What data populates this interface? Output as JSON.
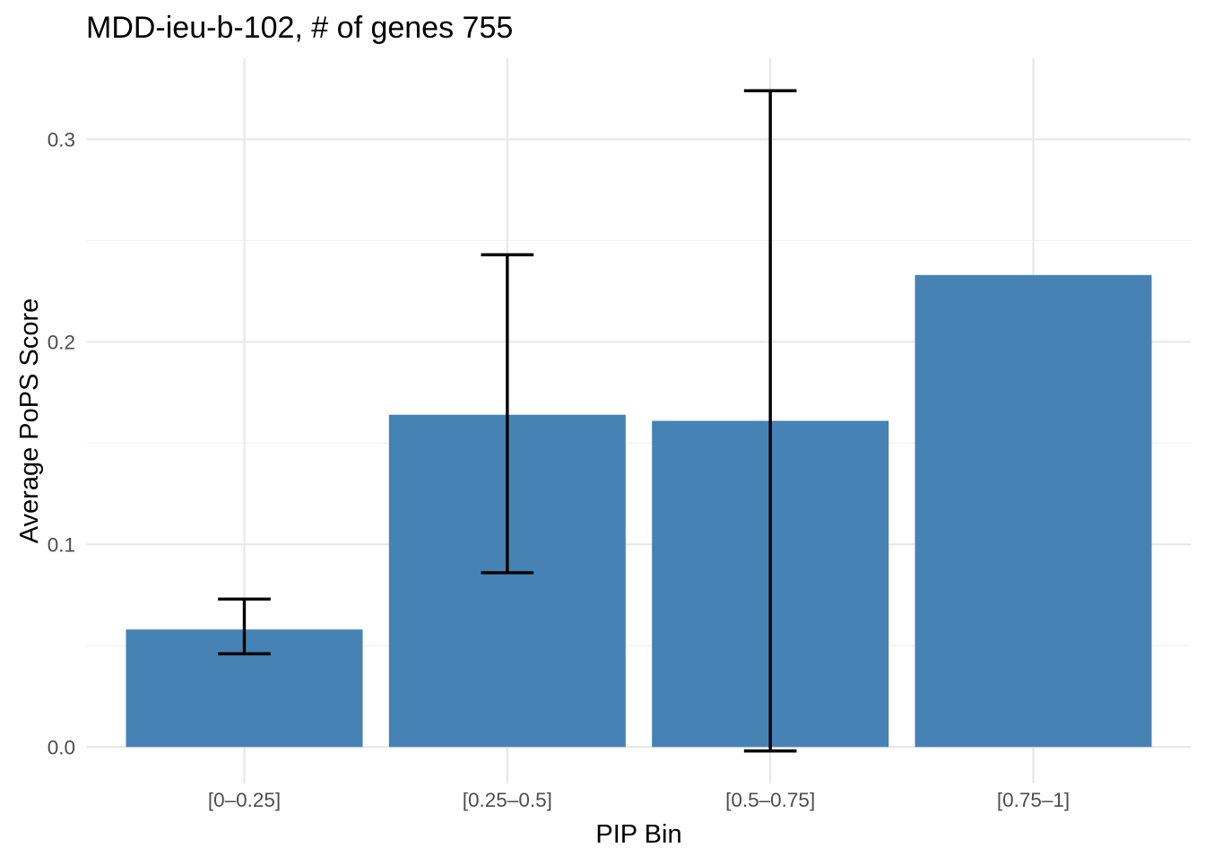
{
  "chart_data": {
    "type": "bar",
    "title": "MDD-ieu-b-102, # of genes 755",
    "xlabel": "PIP Bin",
    "ylabel": "Average PoPS Score",
    "categories": [
      "[0–0.25]",
      "[0.25–0.5]",
      "[0.5–0.75]",
      "[0.75–1]"
    ],
    "values": [
      0.058,
      0.164,
      0.161,
      0.233
    ],
    "error_bars": [
      {
        "low": 0.046,
        "high": 0.073
      },
      {
        "low": 0.086,
        "high": 0.243
      },
      {
        "low": -0.002,
        "high": 0.324
      },
      null
    ],
    "y_ticks": [
      {
        "value": 0.0,
        "label": "0.0"
      },
      {
        "value": 0.1,
        "label": "0.1"
      },
      {
        "value": 0.2,
        "label": "0.2"
      },
      {
        "value": 0.3,
        "label": "0.3"
      }
    ],
    "y_minor_ticks": [
      0.05,
      0.15,
      0.25
    ],
    "ylim": [
      -0.018,
      0.34
    ],
    "grid": true,
    "legend_position": "none",
    "bar_color": "#4682B4",
    "error_bar_color": "#000000",
    "grid_major_color": "#E7E7E7",
    "grid_minor_color": "#F1F1F1",
    "tick_label_color": "#4D4D4D",
    "text_color": "#000000",
    "background_color": "#FFFFFF"
  }
}
